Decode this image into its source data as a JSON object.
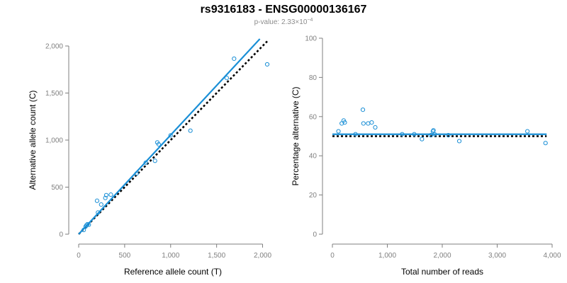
{
  "title": "rs9316183 - ENSG00000136167",
  "subtitle": {
    "label": "p-value: 2.33×10",
    "exponent": "−4"
  },
  "colors": {
    "points": "#1a8fd6",
    "fit": "#1a8fd6",
    "reference": "#000000",
    "axis": "#7f7f7f"
  },
  "chart_data": [
    {
      "type": "scatter",
      "title": "",
      "xlabel": "Reference allele count (T)",
      "ylabel": "Alternative allele count (C)",
      "xlim": [
        0,
        2050
      ],
      "ylim": [
        0,
        2000
      ],
      "xticks": [
        0,
        500,
        1000,
        1500,
        2000
      ],
      "xtick_labels": [
        "0",
        "500",
        "1,000",
        "1,500",
        "2,000"
      ],
      "yticks": [
        0,
        500,
        1000,
        1500,
        2000
      ],
      "ytick_labels": [
        "0",
        "500",
        "1,000",
        "1,500",
        "2,000"
      ],
      "points": [
        {
          "x": 55,
          "y": 45
        },
        {
          "x": 75,
          "y": 80
        },
        {
          "x": 85,
          "y": 95
        },
        {
          "x": 95,
          "y": 105
        },
        {
          "x": 110,
          "y": 100
        },
        {
          "x": 200,
          "y": 355
        },
        {
          "x": 210,
          "y": 230
        },
        {
          "x": 245,
          "y": 315
        },
        {
          "x": 290,
          "y": 385
        },
        {
          "x": 300,
          "y": 415
        },
        {
          "x": 350,
          "y": 420
        },
        {
          "x": 630,
          "y": 645
        },
        {
          "x": 730,
          "y": 760
        },
        {
          "x": 830,
          "y": 780
        },
        {
          "x": 855,
          "y": 975
        },
        {
          "x": 870,
          "y": 955
        },
        {
          "x": 1000,
          "y": 1050
        },
        {
          "x": 1215,
          "y": 1100
        },
        {
          "x": 1610,
          "y": 1660
        },
        {
          "x": 1690,
          "y": 1865
        },
        {
          "x": 2050,
          "y": 1805
        }
      ],
      "fit_line": {
        "x": [
          0,
          1970
        ],
        "y": [
          0,
          2075
        ]
      },
      "reference_line": {
        "x": [
          0,
          2050
        ],
        "y": [
          0,
          2050
        ]
      }
    },
    {
      "type": "scatter",
      "title": "",
      "xlabel": "Total number of reads",
      "ylabel": "Percentage alternative (C)",
      "xlim": [
        0,
        4000
      ],
      "ylim": [
        0,
        100
      ],
      "xticks": [
        0,
        1000,
        2000,
        3000,
        4000
      ],
      "xtick_labels": [
        "0",
        "1,000",
        "2,000",
        "3,000",
        "4,000"
      ],
      "yticks": [
        0,
        20,
        40,
        60,
        80,
        100
      ],
      "ytick_labels": [
        "0",
        "20",
        "40",
        "60",
        "80",
        "100"
      ],
      "points": [
        {
          "x": 110,
          "y": 52.5
        },
        {
          "x": 170,
          "y": 56.5
        },
        {
          "x": 205,
          "y": 58
        },
        {
          "x": 225,
          "y": 57
        },
        {
          "x": 420,
          "y": 51
        },
        {
          "x": 555,
          "y": 63.5
        },
        {
          "x": 565,
          "y": 56.5
        },
        {
          "x": 650,
          "y": 56.5
        },
        {
          "x": 715,
          "y": 57
        },
        {
          "x": 780,
          "y": 54.5
        },
        {
          "x": 1270,
          "y": 51
        },
        {
          "x": 1490,
          "y": 51
        },
        {
          "x": 1630,
          "y": 48.5
        },
        {
          "x": 1790,
          "y": 50.5
        },
        {
          "x": 1830,
          "y": 52.5
        },
        {
          "x": 1840,
          "y": 53
        },
        {
          "x": 1860,
          "y": 51
        },
        {
          "x": 2110,
          "y": 50.5
        },
        {
          "x": 2310,
          "y": 47.5
        },
        {
          "x": 3550,
          "y": 52.5
        },
        {
          "x": 3880,
          "y": 46.5
        }
      ],
      "fit_line": {
        "x": [
          0,
          3900
        ],
        "y": [
          51,
          51
        ]
      },
      "reference_line": {
        "x": [
          0,
          3900
        ],
        "y": [
          50,
          50
        ]
      }
    }
  ]
}
